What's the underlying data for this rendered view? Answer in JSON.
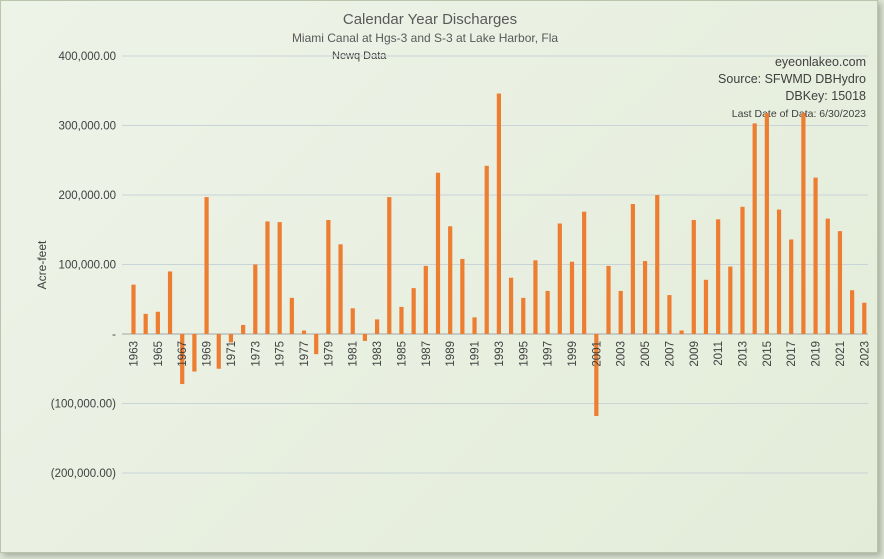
{
  "chart_data": {
    "type": "bar",
    "title": "Calendar Year Discharges",
    "subtitle": "Miami Canal at Hgs-3 and S-3 at Lake Harbor, Fla",
    "annotation": "Newq Data",
    "source_lines": [
      "eyeonlakeo.com",
      "Source: SFWMD DBHydro",
      "DBKey: 15018",
      "Last Date of Data: 6/30/2023"
    ],
    "ylabel": "Acre-feet",
    "xlabel": "",
    "ylim": [
      -200000,
      400000
    ],
    "yticks": [
      400000,
      300000,
      200000,
      100000,
      0,
      -100000,
      -200000
    ],
    "ytick_labels": [
      "400,000.00",
      "300,000.00",
      "200,000.00",
      "100,000.00",
      "-",
      "(100,000.00)",
      "(200,000.00)"
    ],
    "xtick_labels": [
      "1963",
      "1965",
      "1967",
      "1969",
      "1971",
      "1973",
      "1975",
      "1977",
      "1979",
      "1981",
      "1983",
      "1985",
      "1987",
      "1989",
      "1991",
      "1993",
      "1995",
      "1997",
      "1999",
      "2001",
      "2003",
      "2005",
      "2007",
      "2009",
      "2011",
      "2013",
      "2015",
      "2017",
      "2019",
      "2021",
      "2023"
    ],
    "categories": [
      "1963",
      "1964",
      "1965",
      "1966",
      "1967",
      "1968",
      "1969",
      "1970",
      "1971",
      "1972",
      "1973",
      "1974",
      "1975",
      "1976",
      "1977",
      "1978",
      "1979",
      "1980",
      "1981",
      "1982",
      "1983",
      "1984",
      "1985",
      "1986",
      "1987",
      "1988",
      "1989",
      "1990",
      "1991",
      "1992",
      "1993",
      "1994",
      "1995",
      "1996",
      "1997",
      "1998",
      "1999",
      "2000",
      "2001",
      "2002",
      "2003",
      "2004",
      "2005",
      "2006",
      "2007",
      "2008",
      "2009",
      "2010",
      "2011",
      "2012",
      "2013",
      "2014",
      "2015",
      "2016",
      "2017",
      "2018",
      "2019",
      "2020",
      "2021",
      "2022",
      "2023"
    ],
    "values": [
      71000,
      29000,
      32000,
      90000,
      -72000,
      -54000,
      197000,
      -50000,
      -12000,
      13000,
      100000,
      162000,
      161000,
      52000,
      5000,
      -29000,
      164000,
      129000,
      37000,
      -10000,
      21000,
      197000,
      39000,
      66000,
      98000,
      232000,
      155000,
      108000,
      24000,
      242000,
      346000,
      81000,
      52000,
      106000,
      62000,
      159000,
      104000,
      176000,
      -118000,
      98000,
      62000,
      187000,
      105000,
      200000,
      56000,
      5000,
      164000,
      78000,
      165000,
      97000,
      183000,
      303000,
      318000,
      179000,
      136000,
      318000,
      225000,
      166000,
      148000,
      63000,
      45000
    ],
    "colors": {
      "bar": "#ed7d31",
      "grid": "#c9d4d8",
      "axis": "#a6a6a6"
    },
    "grid": true,
    "legend": "none"
  }
}
